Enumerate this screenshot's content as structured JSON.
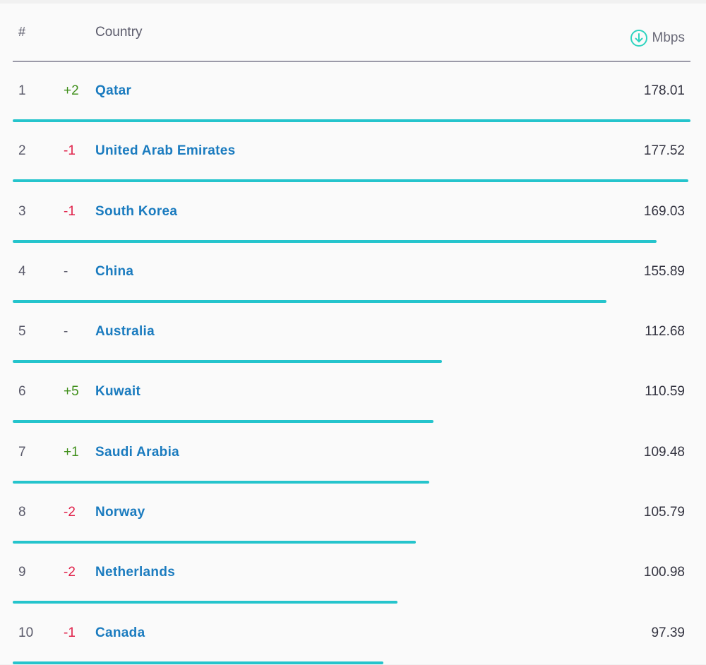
{
  "header": {
    "rank": "#",
    "country": "Country",
    "unit": "Mbps",
    "icon": "download-arrow-circle-icon"
  },
  "colors": {
    "up": "#3f8f1a",
    "down": "#e0224a",
    "same": "#5a5a6a",
    "bar": "#25c4cc",
    "link": "#1a7bbf",
    "icon": "#2fd4c0"
  },
  "chart_data": {
    "type": "table",
    "xlabel": "Country",
    "ylabel": "Mbps",
    "rows": [
      {
        "rank": "1",
        "change": "+2",
        "country": "Qatar",
        "value": 178.01,
        "value_label": "178.01"
      },
      {
        "rank": "2",
        "change": "-1",
        "country": "United Arab Emirates",
        "value": 177.52,
        "value_label": "177.52"
      },
      {
        "rank": "3",
        "change": "-1",
        "country": "South Korea",
        "value": 169.03,
        "value_label": "169.03"
      },
      {
        "rank": "4",
        "change": "-",
        "country": "China",
        "value": 155.89,
        "value_label": "155.89"
      },
      {
        "rank": "5",
        "change": "-",
        "country": "Australia",
        "value": 112.68,
        "value_label": "112.68"
      },
      {
        "rank": "6",
        "change": "+5",
        "country": "Kuwait",
        "value": 110.59,
        "value_label": "110.59"
      },
      {
        "rank": "7",
        "change": "+1",
        "country": "Saudi Arabia",
        "value": 109.48,
        "value_label": "109.48"
      },
      {
        "rank": "8",
        "change": "-2",
        "country": "Norway",
        "value": 105.79,
        "value_label": "105.79"
      },
      {
        "rank": "9",
        "change": "-2",
        "country": "Netherlands",
        "value": 100.98,
        "value_label": "100.98"
      },
      {
        "rank": "10",
        "change": "-1",
        "country": "Canada",
        "value": 97.39,
        "value_label": "97.39"
      }
    ]
  }
}
